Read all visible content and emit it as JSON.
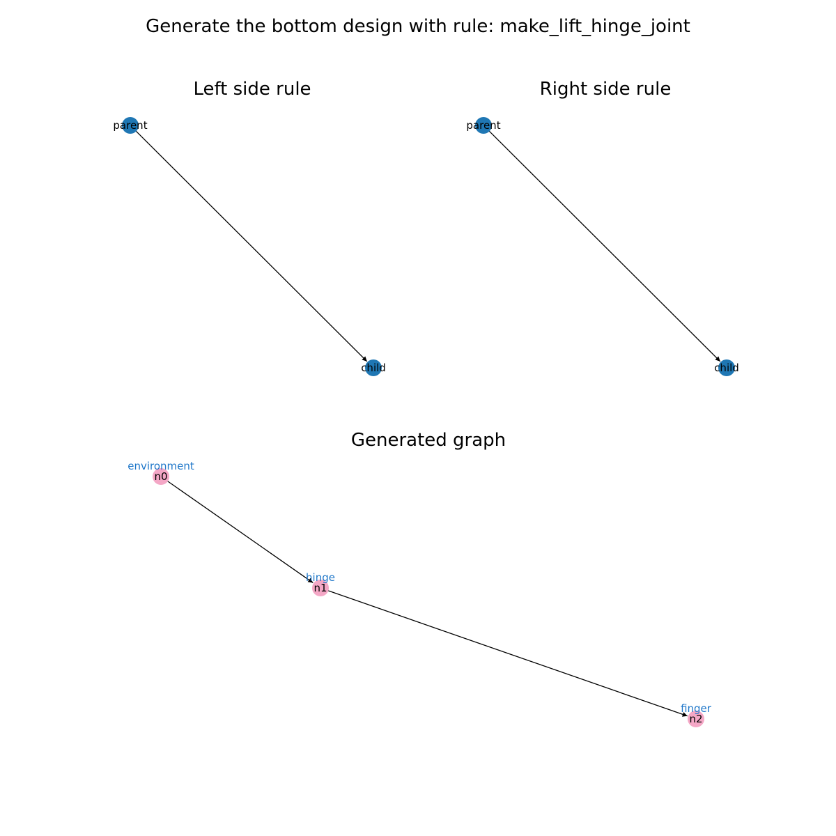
{
  "figure": {
    "title": "Generate the bottom design with rule: make_lift_hinge_joint"
  },
  "colors": {
    "rule_node": "#1f77b4",
    "generated_node": "#f4a7c6",
    "type_label": "#1f77c9",
    "edge": "#000000",
    "text": "#000000"
  },
  "panels": {
    "left": {
      "title": "Left side rule",
      "nodes": [
        {
          "id": "parent",
          "label": "parent"
        },
        {
          "id": "child",
          "label": "child"
        }
      ],
      "edges": [
        {
          "from": "parent",
          "to": "child"
        }
      ]
    },
    "right": {
      "title": "Right side rule",
      "nodes": [
        {
          "id": "parent",
          "label": "parent"
        },
        {
          "id": "child",
          "label": "child"
        }
      ],
      "edges": [
        {
          "from": "parent",
          "to": "child"
        }
      ]
    },
    "generated": {
      "title": "Generated graph",
      "nodes": [
        {
          "id": "n0",
          "label": "n0",
          "type": "environment"
        },
        {
          "id": "n1",
          "label": "n1",
          "type": "hinge"
        },
        {
          "id": "n2",
          "label": "n2",
          "type": "finger"
        }
      ],
      "edges": [
        {
          "from": "n0",
          "to": "n1"
        },
        {
          "from": "n1",
          "to": "n2"
        }
      ]
    }
  }
}
